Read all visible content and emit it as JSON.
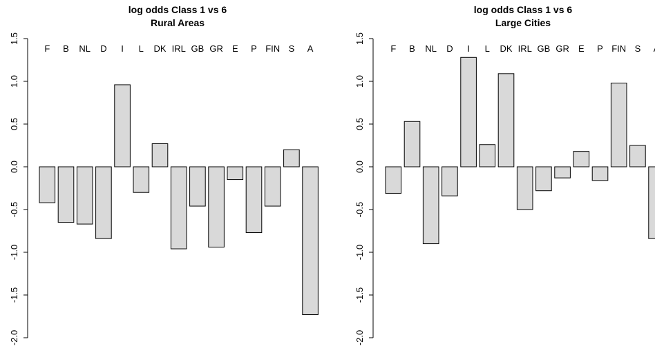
{
  "chart_data": [
    {
      "type": "bar",
      "title": "log odds Class 1 vs 6",
      "subtitle": "Rural Areas",
      "categories": [
        "F",
        "B",
        "NL",
        "D",
        "I",
        "L",
        "DK",
        "IRL",
        "GB",
        "GR",
        "E",
        "P",
        "FIN",
        "S",
        "A"
      ],
      "values": [
        -0.42,
        -0.65,
        -0.67,
        -0.84,
        0.96,
        -0.3,
        0.27,
        -0.96,
        -0.46,
        -0.94,
        -0.15,
        -0.77,
        -0.46,
        0.2,
        -1.73
      ],
      "ylim": [
        -2.0,
        1.5
      ],
      "yticks": [
        "-2.0",
        "-1.5",
        "-1.0",
        "-0.5",
        "0.0",
        "0.5",
        "1.0",
        "1.5"
      ],
      "bar_color": "#d9d9d9",
      "grid": false
    },
    {
      "type": "bar",
      "title": "log odds Class 1 vs 6",
      "subtitle": "Large Cities",
      "categories": [
        "F",
        "B",
        "NL",
        "D",
        "I",
        "L",
        "DK",
        "IRL",
        "GB",
        "GR",
        "E",
        "P",
        "FIN",
        "S",
        "A"
      ],
      "values": [
        -0.31,
        0.53,
        -0.9,
        -0.34,
        1.28,
        0.26,
        1.09,
        -0.5,
        -0.28,
        -0.13,
        0.18,
        -0.16,
        0.98,
        0.25,
        -0.84
      ],
      "ylim": [
        -2.0,
        1.5
      ],
      "yticks": [
        "-2.0",
        "-1.5",
        "-1.0",
        "-0.5",
        "0.0",
        "0.5",
        "1.0",
        "1.5"
      ],
      "bar_color": "#d9d9d9",
      "grid": false
    }
  ]
}
